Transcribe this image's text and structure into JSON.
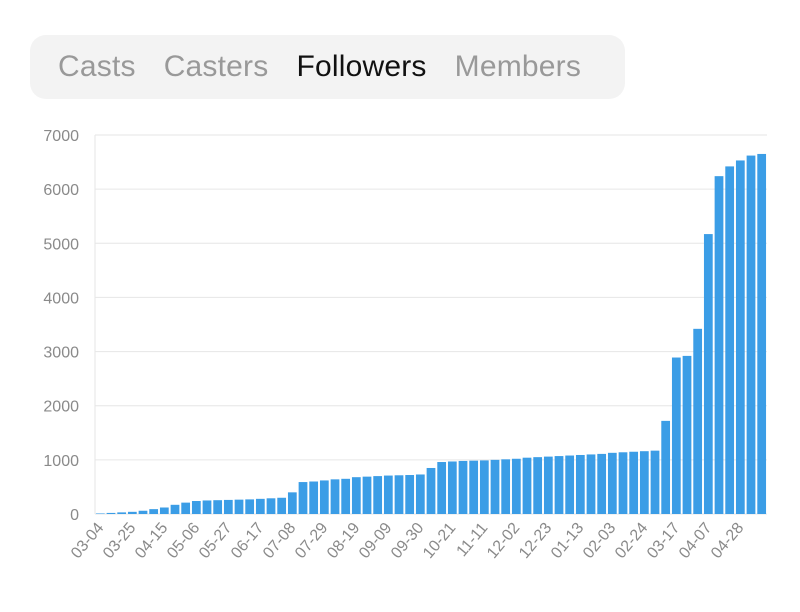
{
  "tabs": [
    {
      "label": "Casts",
      "active": false
    },
    {
      "label": "Casters",
      "active": false
    },
    {
      "label": "Followers",
      "active": true
    },
    {
      "label": "Members",
      "active": false
    }
  ],
  "colors": {
    "bar": "#3b9de6",
    "grid": "#e6e6e6",
    "axis_text": "#8a8a8a"
  },
  "chart_data": {
    "type": "bar",
    "title": "",
    "xlabel": "",
    "ylabel": "",
    "ylim": [
      0,
      7000
    ],
    "yticks": [
      0,
      1000,
      2000,
      3000,
      4000,
      5000,
      6000,
      7000
    ],
    "grid": true,
    "xtick_labels": [
      "03-04",
      "03-25",
      "04-15",
      "05-06",
      "05-27",
      "06-17",
      "07-08",
      "07-29",
      "08-19",
      "09-09",
      "09-30",
      "10-21",
      "11-11",
      "12-02",
      "12-23",
      "01-13",
      "02-03",
      "02-24",
      "03-17",
      "04-07",
      "04-28"
    ],
    "values": [
      10,
      20,
      30,
      40,
      60,
      90,
      120,
      170,
      210,
      240,
      250,
      255,
      260,
      265,
      270,
      280,
      290,
      300,
      400,
      590,
      600,
      620,
      640,
      650,
      680,
      690,
      700,
      710,
      715,
      720,
      730,
      850,
      960,
      970,
      980,
      985,
      990,
      1000,
      1010,
      1020,
      1040,
      1050,
      1060,
      1070,
      1080,
      1090,
      1100,
      1110,
      1130,
      1140,
      1150,
      1160,
      1170,
      1720,
      2890,
      2920,
      3420,
      5170,
      6240,
      6420,
      6530,
      6620,
      6650
    ]
  }
}
